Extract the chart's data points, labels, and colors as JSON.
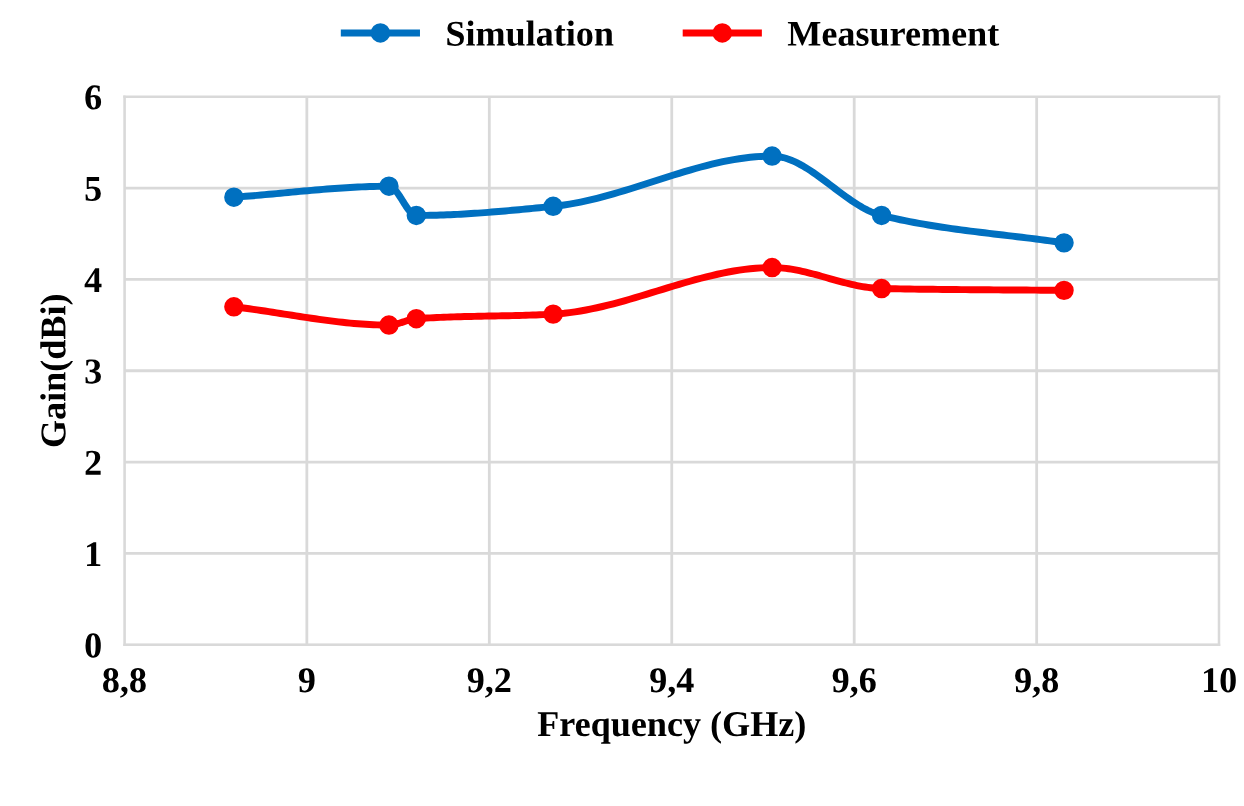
{
  "chart_data": {
    "type": "line",
    "xlabel": "Frequency (GHz)",
    "ylabel": "Gain(dBi)",
    "xlim": [
      8.8,
      10
    ],
    "ylim": [
      0,
      6
    ],
    "xticks": [
      {
        "value": 8.8,
        "label": "8,8"
      },
      9,
      {
        "value": 9.2,
        "label": "9,2"
      },
      {
        "value": 9.4,
        "label": "9,4"
      },
      {
        "value": 9.6,
        "label": "9,6"
      },
      {
        "value": 9.8,
        "label": "9,8"
      },
      10
    ],
    "yticks": [
      0,
      1,
      2,
      3,
      4,
      5,
      6
    ],
    "grid": true,
    "legend": "top",
    "marker": "circle",
    "line_style": "solid",
    "x": [
      8.92,
      9.09,
      9.12,
      9.27,
      9.51,
      9.63,
      9.83
    ],
    "series": [
      {
        "name": "Simulation",
        "color": "#0070c0",
        "values": [
          4.9,
          5.02,
          4.7,
          4.8,
          5.35,
          4.7,
          4.4
        ]
      },
      {
        "name": "Measurement",
        "color": "#ff0000",
        "values": [
          3.7,
          3.5,
          3.57,
          3.62,
          4.13,
          3.9,
          3.88
        ]
      }
    ]
  }
}
